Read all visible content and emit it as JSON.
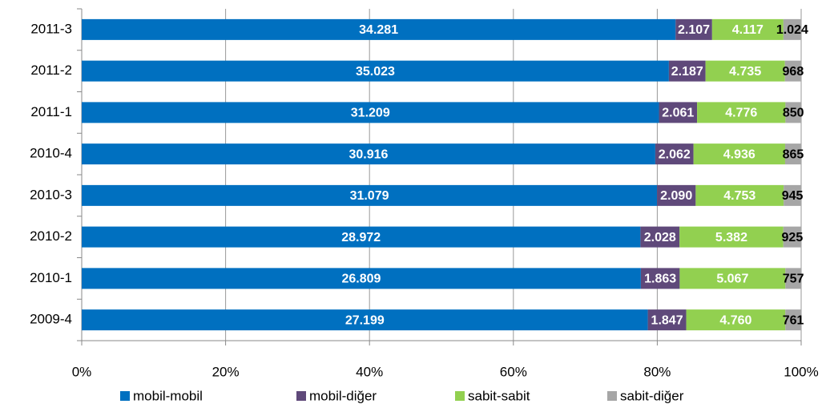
{
  "chart_data": {
    "type": "bar",
    "orientation": "horizontal",
    "stacking": "percent",
    "categories": [
      "2011-3",
      "2011-2",
      "2011-1",
      "2010-4",
      "2010-3",
      "2010-2",
      "2010-1",
      "2009-4"
    ],
    "series": [
      {
        "name": "mobil-mobil",
        "color": "#0070c0",
        "label_color": "#ffffff",
        "values": [
          34281,
          35023,
          31209,
          30916,
          31079,
          28972,
          26809,
          27199
        ],
        "value_labels": [
          "34.281",
          "35.023",
          "31.209",
          "30.916",
          "31.079",
          "28.972",
          "26.809",
          "27.199"
        ]
      },
      {
        "name": "mobil-diğer",
        "color": "#5f497a",
        "label_color": "#ffffff",
        "values": [
          2107,
          2187,
          2061,
          2062,
          2090,
          2028,
          1863,
          1847
        ],
        "value_labels": [
          "2.107",
          "2.187",
          "2.061",
          "2.062",
          "2.090",
          "2.028",
          "1.863",
          "1.847"
        ]
      },
      {
        "name": "sabit-sabit",
        "color": "#92d050",
        "label_color": "#ffffff",
        "values": [
          4117,
          4735,
          4776,
          4936,
          4753,
          5382,
          5067,
          4760
        ],
        "value_labels": [
          "4.117",
          "4.735",
          "4.776",
          "4.936",
          "4.753",
          "5.382",
          "5.067",
          "4.760"
        ]
      },
      {
        "name": "sabit-diğer",
        "color": "#a6a6a6",
        "label_color": "#000000",
        "values": [
          1024,
          968,
          850,
          865,
          945,
          925,
          757,
          761
        ],
        "value_labels": [
          "1.024",
          "968",
          "850",
          "865",
          "945",
          "925",
          "757",
          "761"
        ]
      }
    ],
    "xlim": [
      0,
      100
    ],
    "xticks": [
      {
        "value": 0,
        "label": "0%"
      },
      {
        "value": 20,
        "label": "20%"
      },
      {
        "value": 40,
        "label": "40%"
      },
      {
        "value": 60,
        "label": "60%"
      },
      {
        "value": 80,
        "label": "80%"
      },
      {
        "value": 100,
        "label": "100%"
      }
    ],
    "grid": true,
    "legend": "bottom"
  }
}
